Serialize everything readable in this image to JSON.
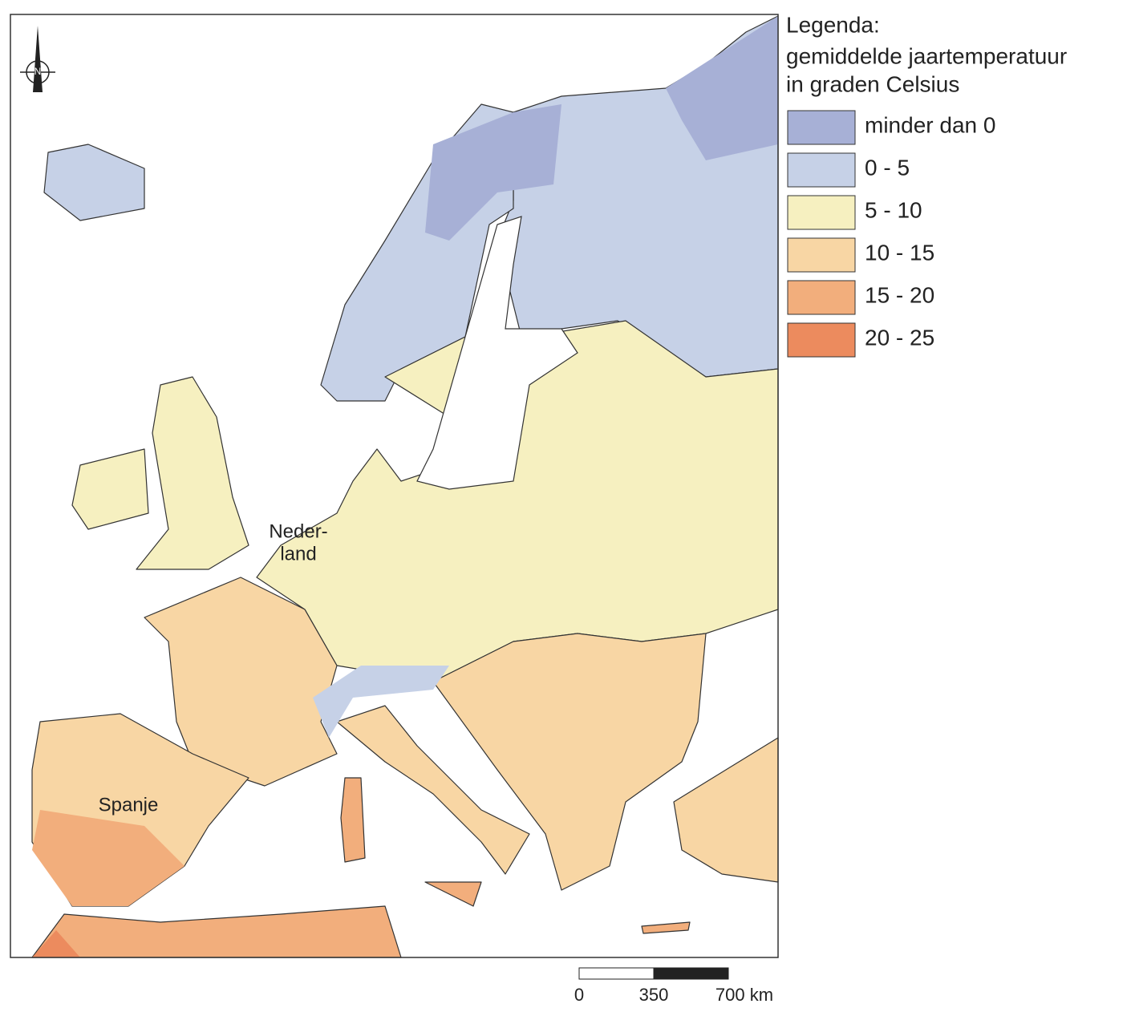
{
  "legend": {
    "title_lines": [
      "Legenda:",
      "gemiddelde jaartemperatuur",
      "in graden Celsius"
    ],
    "items": [
      {
        "label": "minder dan 0",
        "color": "#a7b0d6"
      },
      {
        "label": "0 - 5",
        "color": "#c6d1e7"
      },
      {
        "label": "5 - 10",
        "color": "#f6f0c0"
      },
      {
        "label": "10 - 15",
        "color": "#f8d6a4"
      },
      {
        "label": "15 - 20",
        "color": "#f2ae7c"
      },
      {
        "label": "20 - 25",
        "color": "#ec8b5e"
      }
    ]
  },
  "map": {
    "labels": {
      "netherlands": [
        "Neder-",
        "land"
      ],
      "spain": "Spanje"
    },
    "compass": "N"
  },
  "scale_bar": {
    "labels": [
      "0",
      "350",
      "700 km"
    ]
  }
}
